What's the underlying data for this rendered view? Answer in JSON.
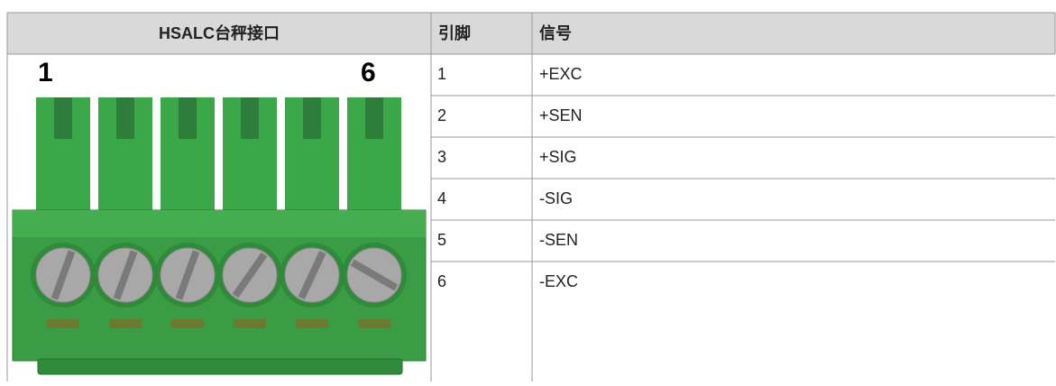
{
  "header": {
    "title": "HSALC台秤接口",
    "pin": "引脚",
    "signal": "信号"
  },
  "image_labels": [
    "1",
    "6"
  ],
  "table": {
    "rows": [
      [
        "1",
        "+EXC"
      ],
      [
        "2",
        "+SEN"
      ],
      [
        "3",
        "+SIG"
      ],
      [
        "4",
        "-SIG"
      ],
      [
        "5",
        "-SEN"
      ],
      [
        "6",
        "-EXC"
      ]
    ]
  }
}
